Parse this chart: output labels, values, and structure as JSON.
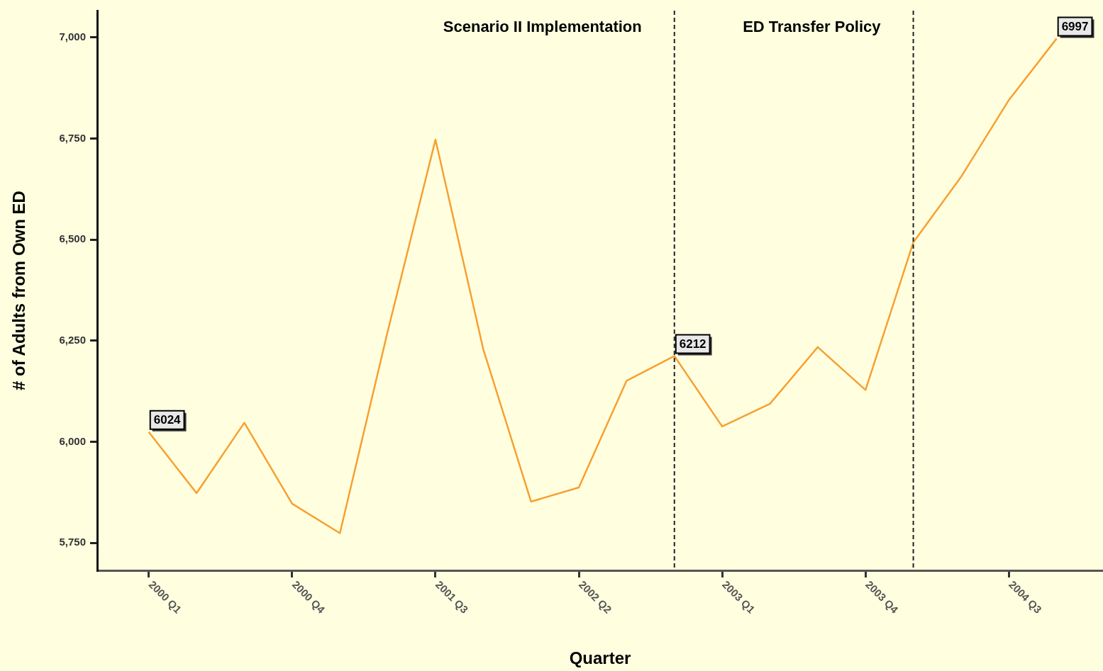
{
  "chart_data": {
    "type": "line",
    "xlabel": "Quarter",
    "ylabel": "# of Adults from Own ED",
    "categories": [
      "2000 Q1",
      null,
      null,
      "2000 Q4",
      null,
      null,
      "2001 Q3",
      null,
      null,
      "2002 Q2",
      null,
      null,
      "2003 Q1",
      null,
      null,
      "2003 Q4",
      null,
      null,
      "2004 Q3",
      null
    ],
    "series": [
      {
        "color": "#f7a030",
        "values": [
          6024,
          5873,
          6047,
          5847,
          5774,
          6273,
          6747,
          6229,
          5852,
          5887,
          6151,
          6212,
          6038,
          6094,
          6234,
          6128,
          6493,
          6655,
          6845,
          6997
        ],
        "value_labels": [
          "6024",
          null,
          null,
          null,
          null,
          null,
          null,
          null,
          null,
          null,
          null,
          "6212",
          null,
          null,
          null,
          null,
          null,
          null,
          null,
          "6997"
        ]
      }
    ],
    "ylim": [
      5682,
      7066
    ],
    "yticks": [
      {
        "value": 5750,
        "label": "5,750"
      },
      {
        "value": 6000,
        "label": "6,000"
      },
      {
        "value": 6250,
        "label": "6,250"
      },
      {
        "value": 6500,
        "label": "6,500"
      },
      {
        "value": 6750,
        "label": "6,750"
      },
      {
        "value": 7000,
        "label": "7,000"
      }
    ],
    "annotations": [
      "Scenario II Implementation",
      "ED Transfer Policy"
    ],
    "grid": false,
    "legend": false,
    "marker": "none",
    "line_style": "solid"
  }
}
